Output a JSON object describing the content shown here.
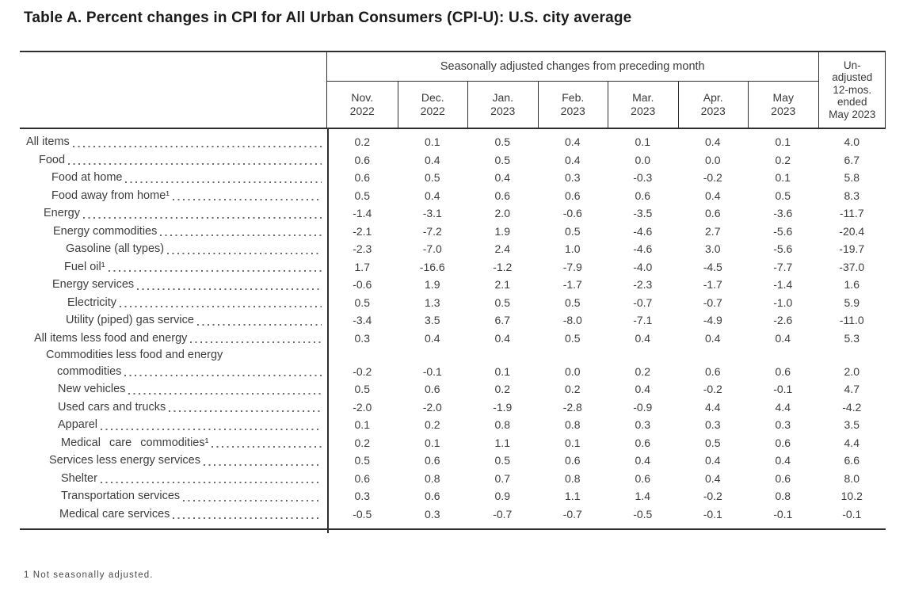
{
  "title": "Table A. Percent changes in CPI for All Urban Consumers (CPI-U): U.S. city average",
  "table": {
    "group_header": "Seasonally adjusted changes from preceding month",
    "unadjusted_header_lines": [
      "Un-",
      "adjusted",
      "12-mos.",
      "ended",
      "May 2023"
    ],
    "columns": [
      {
        "month": "Nov.",
        "year": "2022"
      },
      {
        "month": "Dec.",
        "year": "2022"
      },
      {
        "month": "Jan.",
        "year": "2023"
      },
      {
        "month": "Feb.",
        "year": "2023"
      },
      {
        "month": "Mar.",
        "year": "2023"
      },
      {
        "month": "Apr.",
        "year": "2023"
      },
      {
        "month": "May",
        "year": "2023"
      }
    ],
    "rows": [
      {
        "label": "All items",
        "level": 0,
        "values": [
          "0.2",
          "0.1",
          "0.5",
          "0.4",
          "0.1",
          "0.4",
          "0.1",
          "4.0"
        ]
      },
      {
        "label": "Food",
        "level": 1,
        "values": [
          "0.6",
          "0.4",
          "0.5",
          "0.4",
          "0.0",
          "0.0",
          "0.2",
          "6.7"
        ]
      },
      {
        "label": "Food at home",
        "level": 2,
        "values": [
          "0.6",
          "0.5",
          "0.4",
          "0.3",
          "-0.3",
          "-0.2",
          "0.1",
          "5.8"
        ]
      },
      {
        "label": "Food away from home¹",
        "level": 2,
        "values": [
          "0.5",
          "0.4",
          "0.6",
          "0.6",
          "0.6",
          "0.4",
          "0.5",
          "8.3"
        ]
      },
      {
        "label": "Energy",
        "level": 1.4,
        "values": [
          "-1.4",
          "-3.1",
          "2.0",
          "-0.6",
          "-3.5",
          "0.6",
          "-3.6",
          "-11.7"
        ]
      },
      {
        "label": "Energy commodities",
        "level": 2.1,
        "values": [
          "-2.1",
          "-7.2",
          "1.9",
          "0.5",
          "-4.6",
          "2.7",
          "-5.6",
          "-20.4"
        ]
      },
      {
        "label": "Gasoline (all types)",
        "level": 3.1,
        "values": [
          "-2.3",
          "-7.0",
          "2.4",
          "1.0",
          "-4.6",
          "3.0",
          "-5.6",
          "-19.7"
        ]
      },
      {
        "label": "Fuel oil¹",
        "level": 3,
        "values": [
          "1.7",
          "-16.6",
          "-1.2",
          "-7.9",
          "-4.0",
          "-4.5",
          "-7.7",
          "-37.0"
        ]
      },
      {
        "label": "Energy services",
        "level": 2.05,
        "values": [
          "-0.6",
          "1.9",
          "2.1",
          "-1.7",
          "-2.3",
          "-1.7",
          "-1.4",
          "1.6"
        ]
      },
      {
        "label": "Electricity",
        "level": 3.25,
        "values": [
          "0.5",
          "1.3",
          "0.5",
          "0.5",
          "-0.7",
          "-0.7",
          "-1.0",
          "5.9"
        ]
      },
      {
        "label": "Utility (piped) gas service",
        "level": 3.1,
        "values": [
          "-3.4",
          "3.5",
          "6.7",
          "-8.0",
          "-7.1",
          "-4.9",
          "-2.6",
          "-11.0"
        ]
      },
      {
        "label": "All items less food and energy",
        "level": 0.6,
        "values": [
          "0.3",
          "0.4",
          "0.4",
          "0.5",
          "0.4",
          "0.4",
          "0.4",
          "5.3"
        ]
      },
      {
        "label": "Commodities less food and energy",
        "label2": "commodities",
        "level": 1.55,
        "level2": 2.45,
        "values": [
          "-0.2",
          "-0.1",
          "0.1",
          "0.0",
          "0.2",
          "0.6",
          "0.6",
          "2.0"
        ]
      },
      {
        "label": "New vehicles",
        "level": 2.5,
        "values": [
          "0.5",
          "0.6",
          "0.2",
          "0.2",
          "0.4",
          "-0.2",
          "-0.1",
          "4.7"
        ]
      },
      {
        "label": "Used cars and trucks",
        "level": 2.5,
        "values": [
          "-2.0",
          "-2.0",
          "-1.9",
          "-2.8",
          "-0.9",
          "4.4",
          "4.4",
          "-4.2"
        ]
      },
      {
        "label": "Apparel",
        "level": 2.5,
        "values": [
          "0.1",
          "0.2",
          "0.8",
          "0.8",
          "0.3",
          "0.3",
          "0.3",
          "3.5"
        ]
      },
      {
        "label": "Medical care commodities¹",
        "level": 2.75,
        "values": [
          "0.2",
          "0.1",
          "1.1",
          "0.1",
          "0.6",
          "0.5",
          "0.6",
          "4.4"
        ]
      },
      {
        "label": "Services less energy services",
        "level": 1.8,
        "values": [
          "0.5",
          "0.6",
          "0.5",
          "0.6",
          "0.4",
          "0.4",
          "0.4",
          "6.6"
        ]
      },
      {
        "label": "Shelter",
        "level": 2.75,
        "values": [
          "0.6",
          "0.8",
          "0.7",
          "0.8",
          "0.6",
          "0.4",
          "0.6",
          "8.0"
        ]
      },
      {
        "label": "Transportation services",
        "level": 2.75,
        "values": [
          "0.3",
          "0.6",
          "0.9",
          "1.1",
          "1.4",
          "-0.2",
          "0.8",
          "10.2"
        ]
      },
      {
        "label": "Medical care services",
        "level": 2.6,
        "values": [
          "-0.5",
          "0.3",
          "-0.7",
          "-0.7",
          "-0.5",
          "-0.1",
          "-0.1",
          "-0.1"
        ]
      }
    ]
  },
  "footnote": "1 Not seasonally adjusted.",
  "colors": {
    "title_text": "#1b1b1b",
    "body_text": "#3d3d3d",
    "rule_lines": "#2f2f2f",
    "background": "#ffffff"
  }
}
